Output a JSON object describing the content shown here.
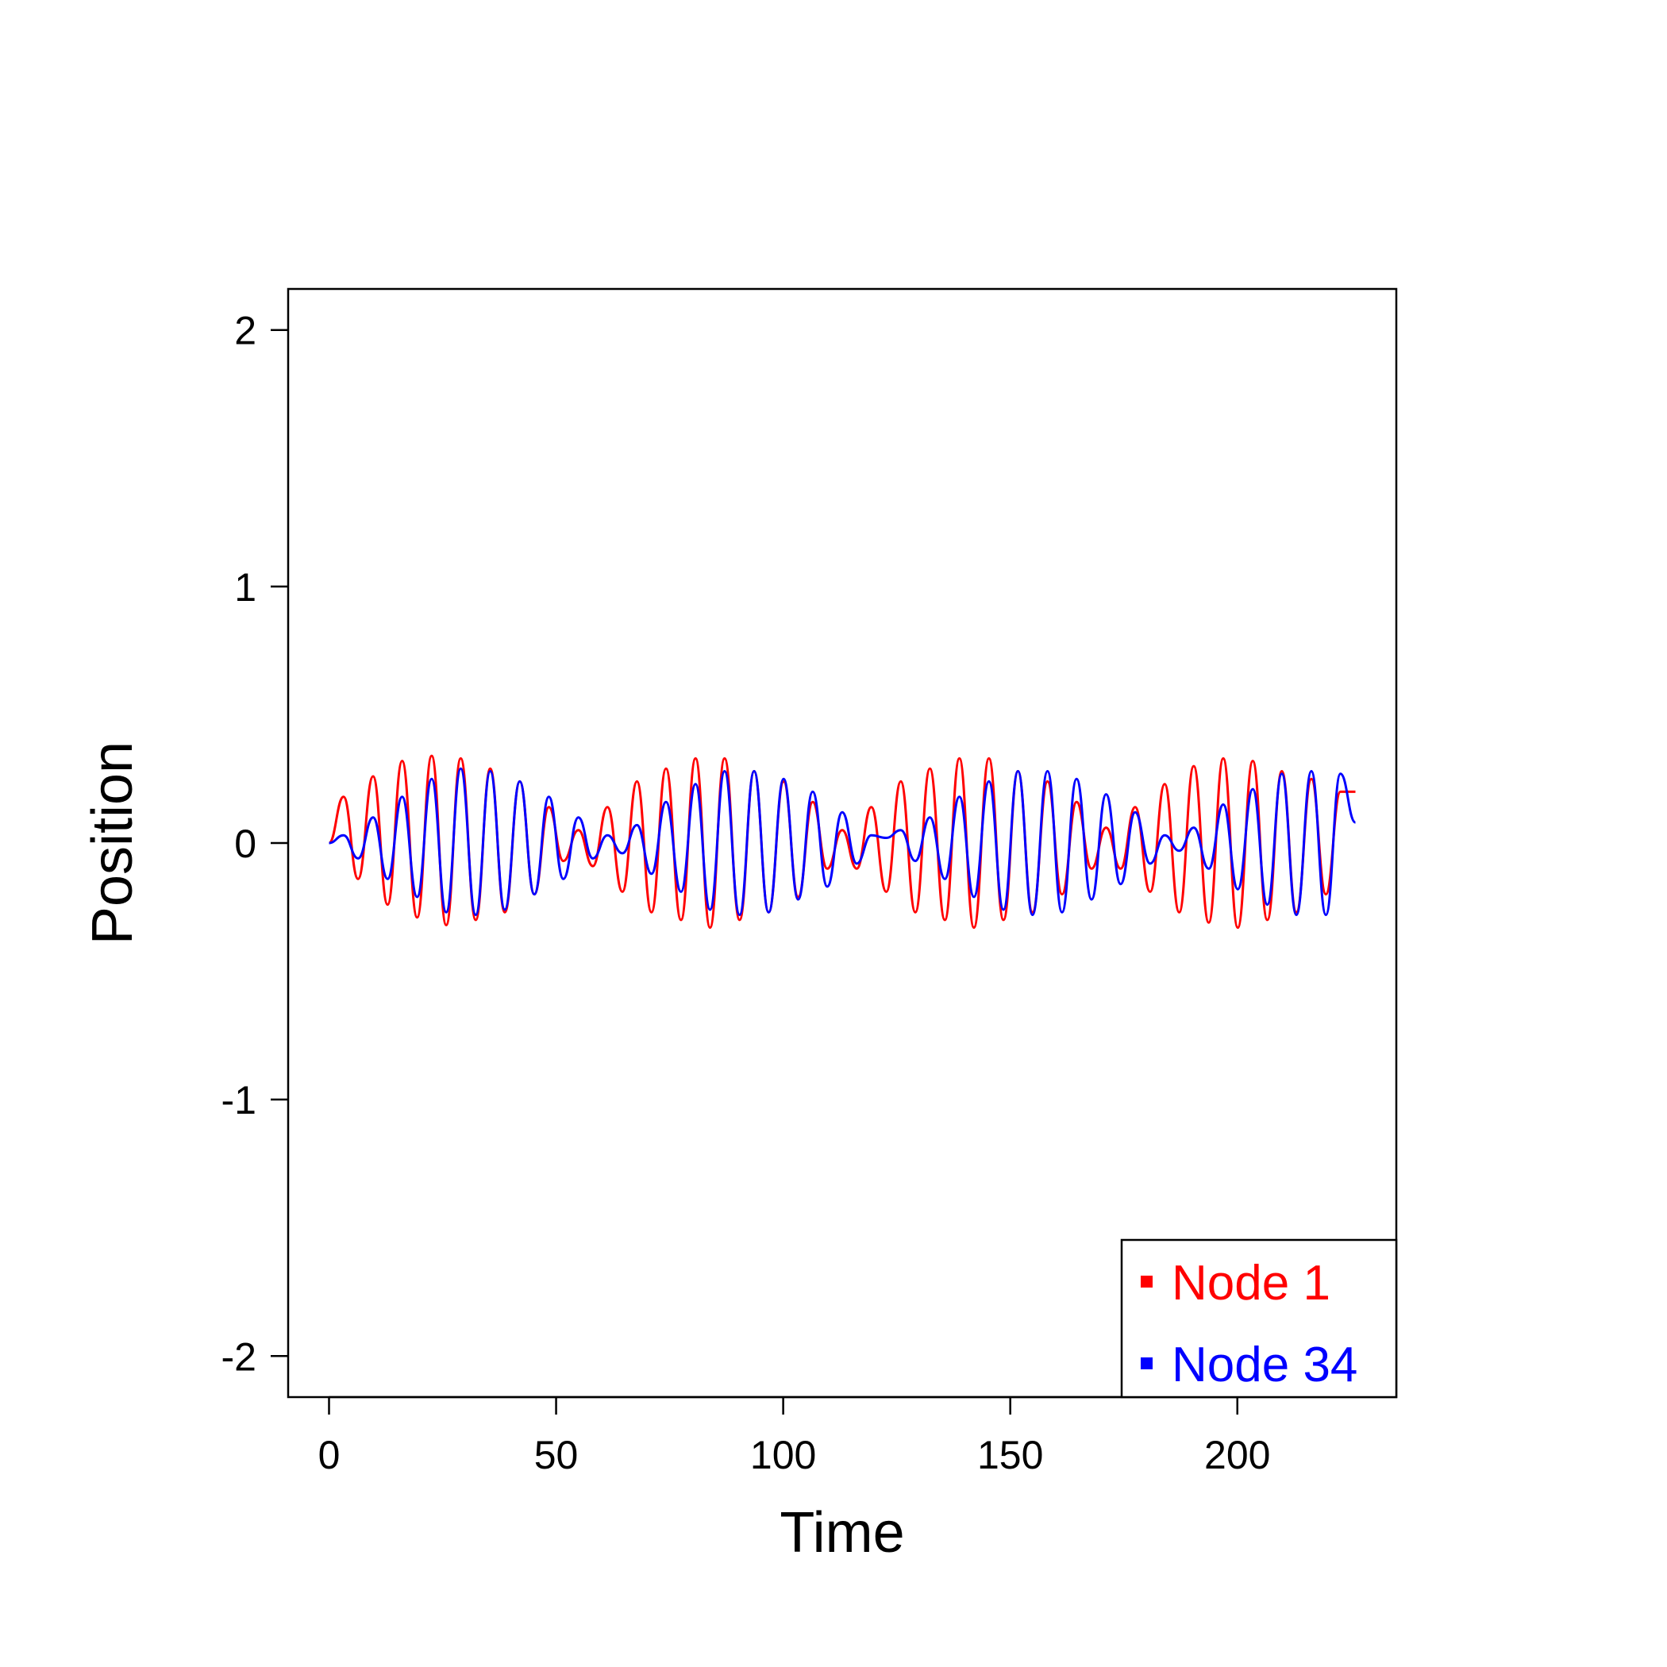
{
  "chart_data": {
    "type": "line",
    "title": "",
    "xlabel": "Time",
    "ylabel": "Position",
    "xlim": [
      -9,
      235
    ],
    "ylim": [
      -2.16,
      2.16
    ],
    "x_ticks": [
      0,
      50,
      100,
      150,
      200
    ],
    "x_tick_labels": [
      "0",
      "50",
      "100",
      "150",
      "200"
    ],
    "y_ticks": [
      -2,
      -1,
      0,
      1,
      2
    ],
    "y_tick_labels": [
      "-2",
      "-1",
      "0",
      "1",
      "2"
    ],
    "grid": false,
    "legend_position": "bottom-right",
    "x_range": [
      0,
      226
    ],
    "series": [
      {
        "name": "Node 1",
        "color": "#ff0000",
        "x": [
          0,
          3.2,
          6.4,
          9.7,
          12.9,
          16.1,
          19.4,
          22.6,
          25.8,
          29.0,
          32.3,
          35.5,
          38.7,
          42.0,
          45.2,
          48.4,
          51.6,
          54.9,
          58.1,
          61.3,
          64.6,
          67.8,
          71.0,
          74.2,
          77.5,
          80.7,
          83.9,
          87.1,
          90.4,
          93.6,
          96.8,
          100.1,
          103.3,
          106.5,
          109.7,
          113.0,
          116.2,
          119.4,
          122.7,
          125.9,
          129.1,
          132.3,
          135.6,
          138.8,
          142.0,
          145.3,
          148.5,
          151.7,
          154.9,
          158.2,
          161.4,
          164.6,
          167.9,
          171.1,
          174.3,
          177.5,
          180.8,
          184.0,
          187.2,
          190.4,
          193.7,
          196.9,
          200.1,
          203.4,
          206.6,
          209.8,
          213.0,
          216.3,
          219.5,
          222.7,
          226.0
        ],
        "values": [
          0,
          0.18,
          -0.14,
          0.26,
          -0.24,
          0.32,
          -0.29,
          0.34,
          -0.32,
          0.33,
          -0.3,
          0.29,
          -0.27,
          0.24,
          -0.2,
          0.14,
          -0.07,
          0.05,
          -0.09,
          0.14,
          -0.19,
          0.24,
          -0.27,
          0.29,
          -0.3,
          0.33,
          -0.33,
          0.33,
          -0.3,
          0.28,
          -0.27,
          0.24,
          -0.21,
          0.16,
          -0.1,
          0.05,
          -0.1,
          0.14,
          -0.19,
          0.24,
          -0.27,
          0.29,
          -0.3,
          0.33,
          -0.33,
          0.33,
          -0.3,
          0.28,
          -0.27,
          0.24,
          -0.2,
          0.16,
          -0.1,
          0.06,
          -0.1,
          0.14,
          -0.19,
          0.23,
          -0.27,
          0.3,
          -0.31,
          0.33,
          -0.33,
          0.32,
          -0.3,
          0.28,
          -0.27,
          0.25,
          -0.2,
          0.2,
          0.2
        ]
      },
      {
        "name": "Node 34",
        "color": "#0000ff",
        "x": [
          0,
          3.2,
          6.4,
          9.7,
          12.9,
          16.1,
          19.4,
          22.6,
          25.8,
          29.0,
          32.3,
          35.5,
          38.7,
          42.0,
          45.2,
          48.4,
          51.6,
          54.9,
          58.1,
          61.3,
          64.6,
          67.8,
          71.0,
          74.2,
          77.5,
          80.7,
          83.9,
          87.1,
          90.4,
          93.6,
          96.8,
          100.1,
          103.3,
          106.5,
          109.7,
          113.0,
          116.2,
          119.4,
          122.7,
          125.9,
          129.1,
          132.3,
          135.6,
          138.8,
          142.0,
          145.3,
          148.5,
          151.7,
          154.9,
          158.2,
          161.4,
          164.6,
          167.9,
          171.1,
          174.3,
          177.5,
          180.8,
          184.0,
          187.2,
          190.4,
          193.7,
          196.9,
          200.1,
          203.4,
          206.6,
          209.8,
          213.0,
          216.3,
          219.5,
          222.7,
          226.0
        ],
        "values": [
          0,
          0.03,
          -0.06,
          0.1,
          -0.14,
          0.18,
          -0.21,
          0.25,
          -0.27,
          0.29,
          -0.28,
          0.28,
          -0.26,
          0.24,
          -0.2,
          0.18,
          -0.14,
          0.1,
          -0.06,
          0.03,
          -0.04,
          0.07,
          -0.12,
          0.16,
          -0.19,
          0.23,
          -0.26,
          0.28,
          -0.28,
          0.28,
          -0.27,
          0.25,
          -0.22,
          0.2,
          -0.17,
          0.12,
          -0.08,
          0.03,
          0.02,
          0.05,
          -0.07,
          0.1,
          -0.14,
          0.18,
          -0.21,
          0.24,
          -0.26,
          0.28,
          -0.28,
          0.28,
          -0.27,
          0.25,
          -0.22,
          0.19,
          -0.16,
          0.12,
          -0.08,
          0.03,
          -0.03,
          0.06,
          -0.1,
          0.15,
          -0.18,
          0.21,
          -0.24,
          0.27,
          -0.28,
          0.28,
          -0.28,
          0.27,
          0.08
        ]
      }
    ]
  }
}
